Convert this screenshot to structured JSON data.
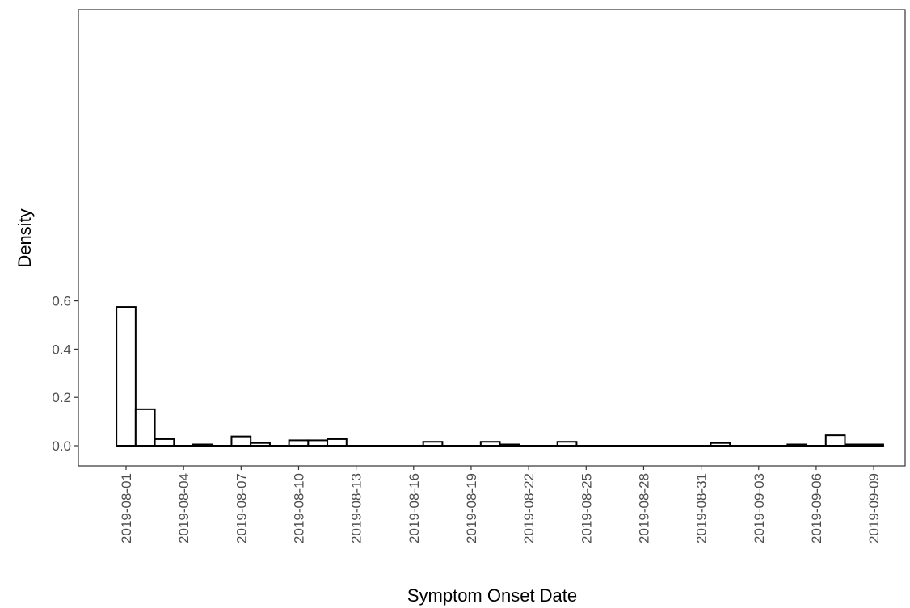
{
  "chart_data": {
    "type": "bar",
    "subtype": "histogram",
    "title": "",
    "xlabel": "Symptom Onset Date",
    "ylabel": "Density",
    "ylim": [
      0,
      0.6
    ],
    "xlim": [
      "2019-07-31",
      "2019-09-10"
    ],
    "y_ticks": [
      "0.0",
      "0.2",
      "0.4",
      "0.6"
    ],
    "x_ticks": [
      "2019-08-01",
      "2019-08-04",
      "2019-08-07",
      "2019-08-10",
      "2019-08-13",
      "2019-08-16",
      "2019-08-19",
      "2019-08-22",
      "2019-08-25",
      "2019-08-28",
      "2019-08-31",
      "2019-09-03",
      "2019-09-06",
      "2019-09-09"
    ],
    "bin_width_days": 1,
    "bins": [
      {
        "date": "2019-08-01",
        "value": 0.575
      },
      {
        "date": "2019-08-02",
        "value": 0.151
      },
      {
        "date": "2019-08-03",
        "value": 0.027
      },
      {
        "date": "2019-08-04",
        "value": 0.0
      },
      {
        "date": "2019-08-05",
        "value": 0.005
      },
      {
        "date": "2019-08-06",
        "value": 0.0
      },
      {
        "date": "2019-08-07",
        "value": 0.038
      },
      {
        "date": "2019-08-08",
        "value": 0.011
      },
      {
        "date": "2019-08-09",
        "value": 0.0
      },
      {
        "date": "2019-08-10",
        "value": 0.022
      },
      {
        "date": "2019-08-11",
        "value": 0.022
      },
      {
        "date": "2019-08-12",
        "value": 0.027
      },
      {
        "date": "2019-08-13",
        "value": 0.0
      },
      {
        "date": "2019-08-14",
        "value": 0.0
      },
      {
        "date": "2019-08-15",
        "value": 0.0
      },
      {
        "date": "2019-08-16",
        "value": 0.0
      },
      {
        "date": "2019-08-17",
        "value": 0.016
      },
      {
        "date": "2019-08-18",
        "value": 0.0
      },
      {
        "date": "2019-08-19",
        "value": 0.0
      },
      {
        "date": "2019-08-20",
        "value": 0.016
      },
      {
        "date": "2019-08-21",
        "value": 0.005
      },
      {
        "date": "2019-08-22",
        "value": 0.0
      },
      {
        "date": "2019-08-23",
        "value": 0.0
      },
      {
        "date": "2019-08-24",
        "value": 0.016
      },
      {
        "date": "2019-08-25",
        "value": 0.0
      },
      {
        "date": "2019-08-26",
        "value": 0.0
      },
      {
        "date": "2019-08-27",
        "value": 0.0
      },
      {
        "date": "2019-08-28",
        "value": 0.0
      },
      {
        "date": "2019-08-29",
        "value": 0.0
      },
      {
        "date": "2019-08-30",
        "value": 0.0
      },
      {
        "date": "2019-08-31",
        "value": 0.0
      },
      {
        "date": "2019-09-01",
        "value": 0.011
      },
      {
        "date": "2019-09-02",
        "value": 0.0
      },
      {
        "date": "2019-09-03",
        "value": 0.0
      },
      {
        "date": "2019-09-04",
        "value": 0.0
      },
      {
        "date": "2019-09-05",
        "value": 0.005
      },
      {
        "date": "2019-09-06",
        "value": 0.0
      },
      {
        "date": "2019-09-07",
        "value": 0.043
      },
      {
        "date": "2019-09-08",
        "value": 0.005
      },
      {
        "date": "2019-09-09",
        "value": 0.005
      }
    ],
    "grid": false,
    "legend": "none",
    "colors": {
      "bar_fill": "#ffffff",
      "bar_stroke": "#000000",
      "axis": "#333333",
      "tick_text": "#4d4d4d",
      "title_text": "#000000"
    }
  }
}
